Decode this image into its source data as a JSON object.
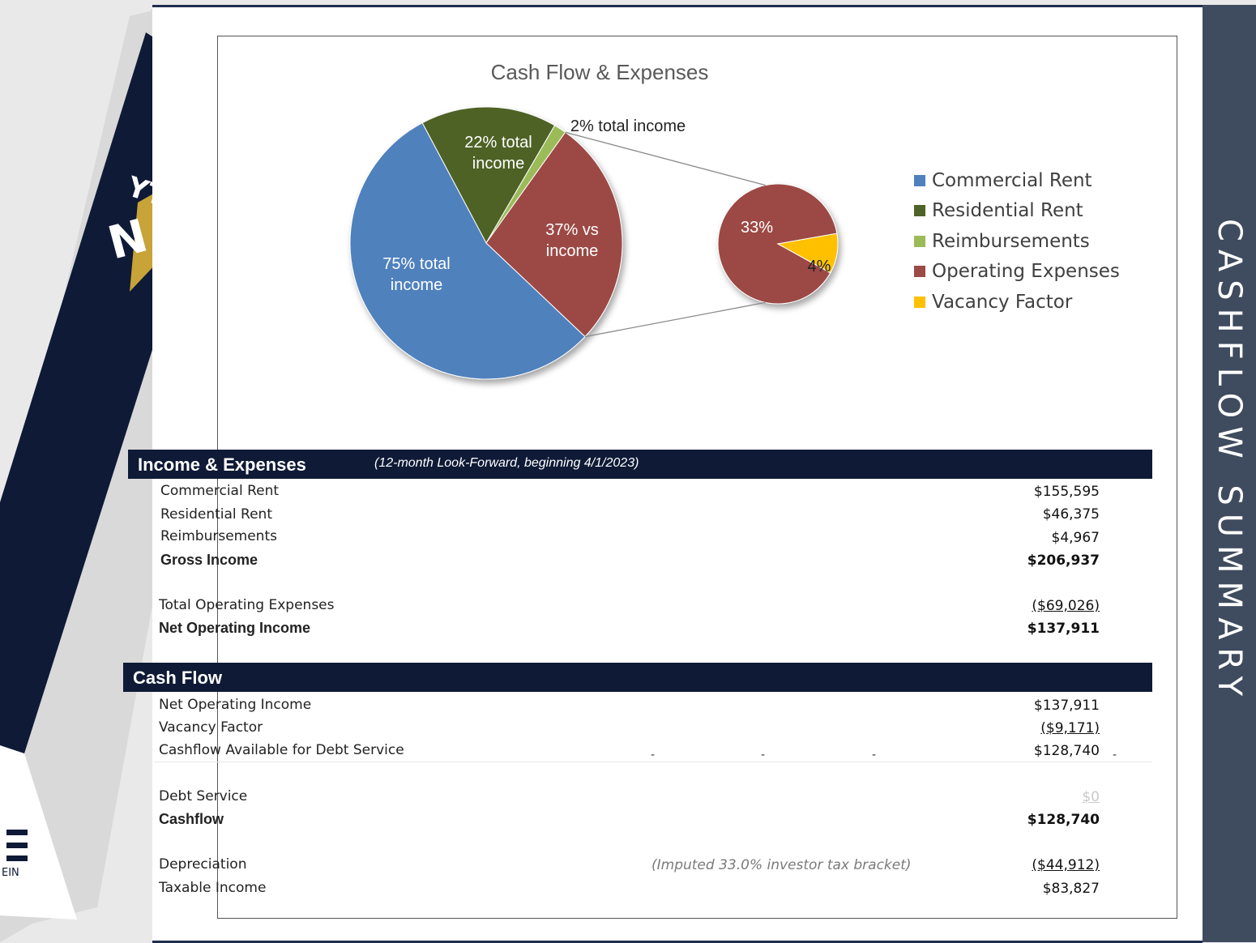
{
  "side_title": "CASHFLOW SUMMARY",
  "chart_data": {
    "type": "pie",
    "title": "Cash Flow & Expenses",
    "categories": [
      "Commercial Rent",
      "Residential Rent",
      "Reimbursements",
      "Operating Expenses",
      "Vacancy Factor"
    ],
    "colors": [
      "#4f81bd",
      "#4f6228",
      "#9bbb59",
      "#9c4a45",
      "#ffc000"
    ],
    "main_pie": [
      {
        "name": "Commercial Rent",
        "label": "75% total income",
        "percent": 75
      },
      {
        "name": "Residential Rent",
        "label": "22% total income",
        "percent": 22
      },
      {
        "name": "Reimbursements",
        "label": "2% total income",
        "percent": 2
      },
      {
        "name": "Operating Expenses",
        "label": "37% vs income",
        "percent": 37
      }
    ],
    "secondary_pie": [
      {
        "name": "Operating Expenses",
        "label": "33%",
        "percent": 33
      },
      {
        "name": "Vacancy Factor",
        "label": "4%",
        "percent": 4
      }
    ],
    "legend": [
      "Commercial Rent",
      "Residential Rent",
      "Reimbursements",
      "Operating Expenses",
      "Vacancy Factor"
    ],
    "legend_position": "right"
  },
  "income_section": {
    "title": "Income & Expenses",
    "subtitle": "(12-month Look-Forward, beginning 4/1/2023)",
    "rows": [
      {
        "label": "Commercial Rent",
        "amount": "$155,595"
      },
      {
        "label": "Residential Rent",
        "amount": "$46,375"
      },
      {
        "label": "Reimbursements",
        "amount": "$4,967"
      },
      {
        "label": "Gross Income",
        "amount": "$206,937"
      },
      {
        "label": "Total Operating Expenses",
        "amount": "($69,026)"
      },
      {
        "label": "Net Operating Income",
        "amount": "$137,911"
      }
    ]
  },
  "cash_section": {
    "title": "Cash Flow",
    "rows": [
      {
        "label": "Net Operating Income",
        "amount": "$137,911"
      },
      {
        "label": "Vacancy Factor",
        "amount": "($9,171)"
      },
      {
        "label": "Cashflow Available for Debt Service",
        "amount": "$128,740"
      },
      {
        "label": "Debt Service",
        "amount": "$0"
      },
      {
        "label": "Cashflow",
        "amount": "$128,740"
      },
      {
        "label": "Depreciation",
        "amount": "($44,912)"
      },
      {
        "label": "Taxable Income",
        "amount": "$83,827"
      }
    ],
    "depreciation_note": "(Imputed 33.0% investor tax bracket)"
  }
}
